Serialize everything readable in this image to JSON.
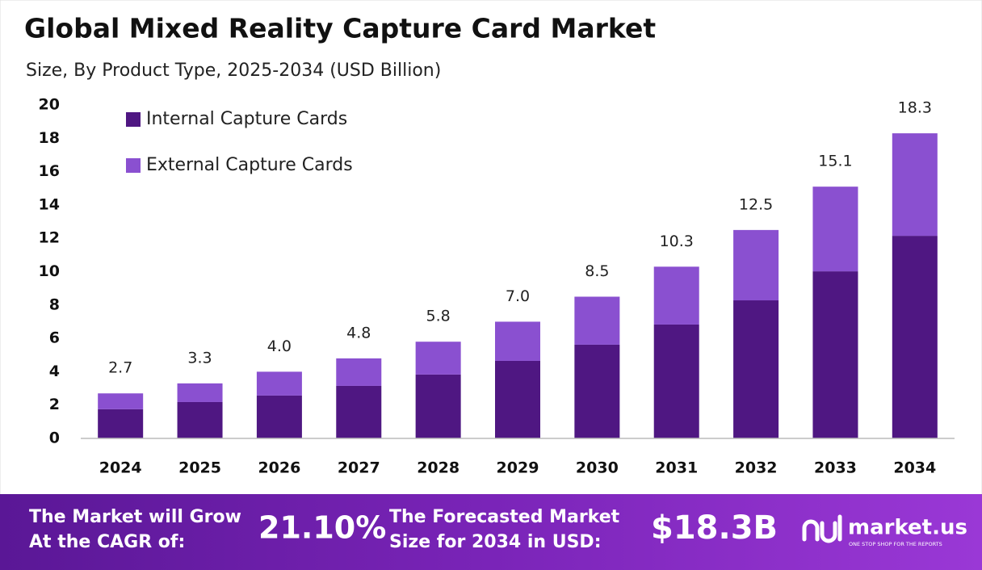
{
  "chart_data": {
    "type": "stacked-bar",
    "title": "Global Mixed Reality Capture Card Market",
    "subtitle": "Size, By Product Type, 2025-2034 (USD Billion)",
    "categories": [
      "2024",
      "2025",
      "2026",
      "2027",
      "2028",
      "2029",
      "2030",
      "2031",
      "2032",
      "2033",
      "2034"
    ],
    "series": [
      {
        "name": "Internal Capture Cards",
        "color": "#4f1782",
        "values": [
          1.75,
          2.18,
          2.57,
          3.15,
          3.83,
          4.65,
          5.62,
          6.83,
          8.28,
          10.02,
          12.15
        ]
      },
      {
        "name": "External Capture Cards",
        "color": "#8a50d0",
        "values": [
          0.95,
          1.12,
          1.43,
          1.65,
          1.97,
          2.35,
          2.88,
          3.47,
          4.22,
          5.08,
          6.15
        ]
      }
    ],
    "totals": [
      2.7,
      3.3,
      4.0,
      4.8,
      5.8,
      7.0,
      8.5,
      10.3,
      12.5,
      15.1,
      18.3
    ],
    "total_labels": [
      "2.7",
      "3.3",
      "4.0",
      "4.8",
      "5.8",
      "7.0",
      "8.5",
      "10.3",
      "12.5",
      "15.1",
      "18.3"
    ],
    "ylim": [
      0,
      20
    ],
    "yticks": [
      0,
      2,
      4,
      6,
      8,
      10,
      12,
      14,
      16,
      18,
      20
    ],
    "grid": false,
    "legend": "top-left"
  },
  "footer": {
    "cagr_text": [
      "The Market will Grow",
      "At the CAGR of:"
    ],
    "cagr_value": "21.10%",
    "forecast_text": [
      "The Forecasted Market",
      "Size for 2034 in USD:"
    ],
    "forecast_value": "$18.3B",
    "brand": "market.us",
    "tagline": "ONE STOP SHOP FOR THE REPORTS"
  }
}
